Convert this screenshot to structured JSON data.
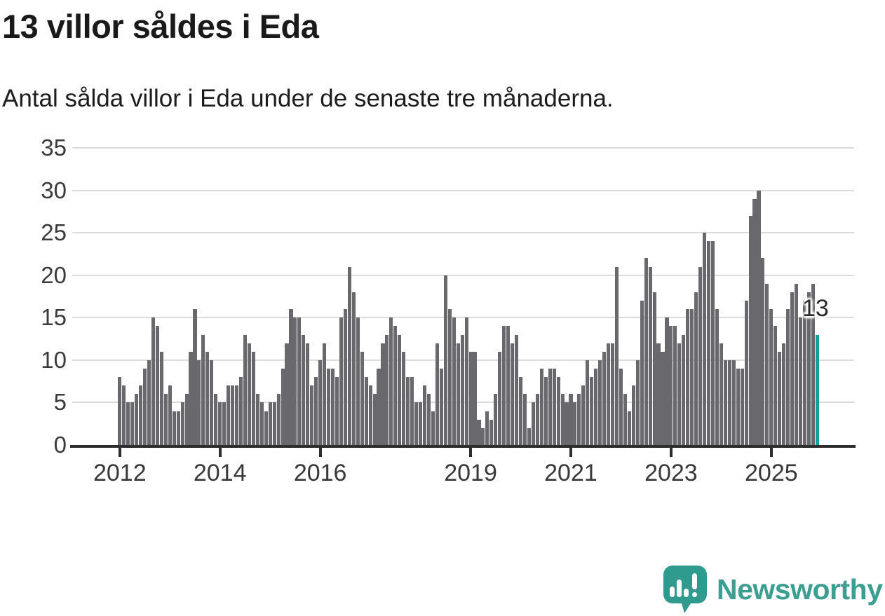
{
  "page": {
    "title": "13 villor såldes i Eda",
    "subtitle": "Antal sålda villor i Eda under de senaste tre månaderna."
  },
  "annotation": {
    "value_label": "13"
  },
  "branding": {
    "name": "Newsworthy"
  },
  "colors": {
    "bar": "#68686D",
    "highlight_bar": "#11A099",
    "gridline": "#DCDCDC",
    "axis": "#2E2E2E",
    "title_text": "#1A1A1A",
    "subtitle_text": "#1C1C1C",
    "tick_label": "#3A3A3A",
    "annotation_text": "#2B2B2B",
    "logo": "#3C9D91"
  },
  "chart_data": {
    "type": "bar",
    "title": "13 villor såldes i Eda",
    "subtitle": "Antal sålda villor i Eda under de senaste tre månaderna.",
    "start": "2012-01",
    "end": "2025-12",
    "ylim": [
      0,
      35
    ],
    "yticks": [
      0,
      5,
      10,
      15,
      20,
      25,
      30,
      35
    ],
    "grid": true,
    "legend": false,
    "xticks": [
      {
        "label": "2012",
        "month_index": 0
      },
      {
        "label": "2014",
        "month_index": 24
      },
      {
        "label": "2016",
        "month_index": 48
      },
      {
        "label": "2019",
        "month_index": 84
      },
      {
        "label": "2021",
        "month_index": 108
      },
      {
        "label": "2023",
        "month_index": 132
      },
      {
        "label": "2025",
        "month_index": 156
      }
    ],
    "values": [
      8,
      7,
      5,
      5,
      6,
      7,
      9,
      10,
      15,
      14,
      11,
      6,
      7,
      4,
      4,
      5,
      6,
      11,
      16,
      10,
      13,
      11,
      10,
      6,
      5,
      5,
      7,
      7,
      7,
      8,
      13,
      12,
      11,
      6,
      5,
      4,
      5,
      5,
      6,
      9,
      12,
      16,
      15,
      15,
      13,
      12,
      7,
      8,
      10,
      12,
      9,
      9,
      8,
      15,
      16,
      21,
      18,
      15,
      11,
      8,
      7,
      6,
      9,
      12,
      13,
      15,
      14,
      13,
      11,
      8,
      8,
      5,
      5,
      7,
      6,
      4,
      12,
      9,
      20,
      16,
      15,
      12,
      13,
      15,
      11,
      11,
      3,
      2,
      4,
      3,
      6,
      11,
      14,
      14,
      12,
      13,
      8,
      6,
      2,
      5,
      6,
      9,
      8,
      9,
      9,
      8,
      6,
      5,
      6,
      5,
      6,
      7,
      10,
      8,
      9,
      10,
      11,
      12,
      12,
      21,
      9,
      6,
      4,
      7,
      10,
      17,
      22,
      21,
      18,
      12,
      11,
      15,
      14,
      14,
      12,
      13,
      16,
      16,
      18,
      21,
      25,
      24,
      24,
      16,
      12,
      10,
      10,
      10,
      9,
      9,
      17,
      27,
      29,
      30,
      22,
      19,
      16,
      14,
      11,
      12,
      16,
      18,
      19,
      15,
      17,
      18,
      19,
      13
    ],
    "highlight_last": true,
    "last_value": 13
  }
}
